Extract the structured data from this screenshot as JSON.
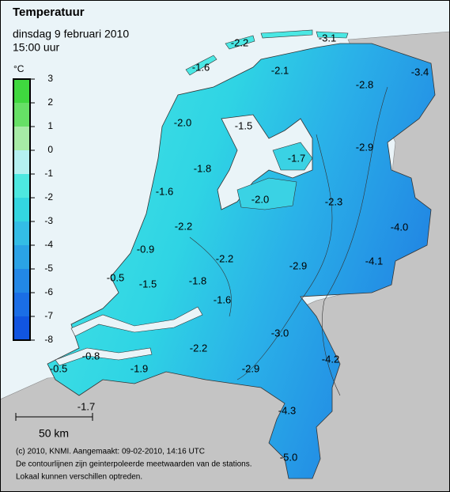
{
  "header": {
    "title": "Temperatuur",
    "date": "dinsdag 9 februari 2010",
    "time": "15:00 uur"
  },
  "legend": {
    "unit": "°C",
    "ticks": [
      3,
      2,
      1,
      0,
      -1,
      -2,
      -3,
      -4,
      -5,
      -6,
      -7,
      -8
    ],
    "colors": [
      "#3fd83f",
      "#66e066",
      "#a6eba6",
      "#b4f0f0",
      "#4de8e0",
      "#33d6e0",
      "#33bde6",
      "#2aa3e6",
      "#2288e6",
      "#1a6ee6",
      "#1155e0"
    ]
  },
  "stations": [
    -2.2,
    -3.1,
    -1.6,
    -2.1,
    -3.4,
    -2.8,
    {
      "value": -2,
      "label": "-2.0"
    },
    -1.5,
    -2.9,
    -1.7,
    -1.8,
    -1.6,
    {
      "value": -2,
      "label": "-2.0"
    },
    -2.3,
    {
      "value": -4,
      "label": "-4.0"
    },
    -2.2,
    -0.9,
    -2.2,
    -4.1,
    -2.9,
    -0.5,
    -1.5,
    -1.8,
    -1.6,
    {
      "value": -3,
      "label": "-3.0"
    },
    -0.8,
    -2.2,
    -4.2,
    -0.5,
    -1.9,
    -2.9,
    -4.3,
    -1.7,
    {
      "value": -5,
      "label": "-5.0"
    }
  ],
  "scale": "50 km",
  "footer": [
    "(c) 2010, KNMI. Aangemaakt: 09-02-2010, 14:16 UTC",
    "De contourlijnen zijn geinterpoleerde meetwaarden van de stations.",
    "Lokaal kunnen verschillen optreden."
  ]
}
